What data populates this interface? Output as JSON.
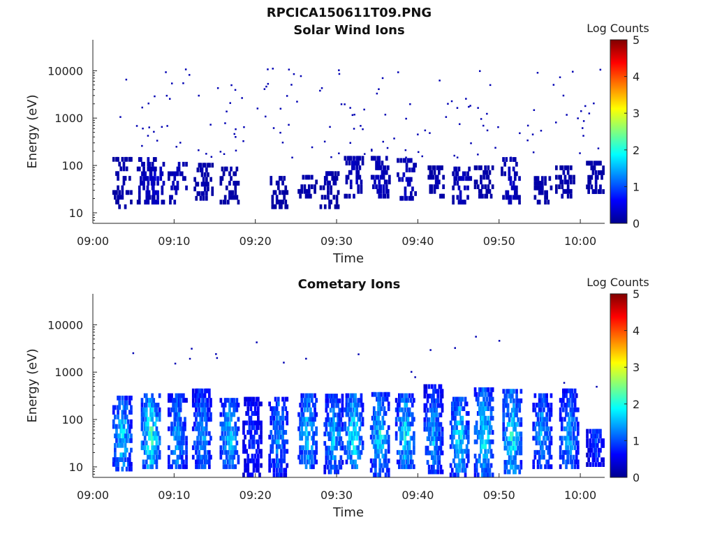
{
  "title": "RPCICA150611T09.PNG",
  "chart_data": [
    {
      "type": "heatmap",
      "title": "Solar Wind Ions",
      "xlabel": "Time",
      "ylabel": "Energy (eV)",
      "yscale": "log",
      "xlim": [
        "09:00",
        "10:03"
      ],
      "ylim": [
        6,
        45000
      ],
      "xticks": [
        "09:00",
        "09:10",
        "09:20",
        "09:30",
        "09:40",
        "09:50",
        "10:00"
      ],
      "yticks": [
        10,
        100,
        1000,
        10000
      ],
      "yticklabels": [
        "10",
        "100",
        "1000",
        "10000"
      ],
      "colorbar": {
        "label": "Log Counts",
        "range": [
          0,
          5
        ],
        "ticks": [
          "0",
          "1",
          "2",
          "3",
          "4",
          "5"
        ]
      },
      "grid": false,
      "bursts": [
        {
          "t": "09:03.5",
          "eMin": 12,
          "eMax": 150,
          "level": 0.2
        },
        {
          "t": "09:06.5",
          "eMin": 15,
          "eMax": 140,
          "level": 0.3
        },
        {
          "t": "09:07.5",
          "eMin": 15,
          "eMax": 110,
          "level": 0.4
        },
        {
          "t": "09:10.3",
          "eMin": 15,
          "eMax": 110,
          "level": 0.3
        },
        {
          "t": "09:13.5",
          "eMin": 18,
          "eMax": 100,
          "level": 0.2
        },
        {
          "t": "09:16.7",
          "eMin": 15,
          "eMax": 90,
          "level": 0.2
        },
        {
          "t": "09:22.7",
          "eMin": 12,
          "eMax": 50,
          "level": 0.2
        },
        {
          "t": "09:26.3",
          "eMin": 20,
          "eMax": 55,
          "level": 0.2
        },
        {
          "t": "09:29.0",
          "eMin": 12,
          "eMax": 70,
          "level": 0.2
        },
        {
          "t": "09:32.0",
          "eMin": 20,
          "eMax": 130,
          "level": 0.3
        },
        {
          "t": "09:35.3",
          "eMin": 20,
          "eMax": 130,
          "level": 0.3
        },
        {
          "t": "09:38.5",
          "eMin": 18,
          "eMax": 120,
          "level": 0.3
        },
        {
          "t": "09:42.3",
          "eMin": 20,
          "eMax": 80,
          "level": 0.2
        },
        {
          "t": "09:45.3",
          "eMin": 15,
          "eMax": 90,
          "level": 0.3
        },
        {
          "t": "09:48.0",
          "eMin": 20,
          "eMax": 100,
          "level": 0.2
        },
        {
          "t": "09:51.3",
          "eMin": 15,
          "eMax": 140,
          "level": 0.3
        },
        {
          "t": "09:55.2",
          "eMin": 15,
          "eMax": 50,
          "level": 0.2
        },
        {
          "t": "09:58.0",
          "eMin": 20,
          "eMax": 100,
          "level": 0.2
        },
        {
          "t": "10:01.8",
          "eMin": 25,
          "eMax": 120,
          "level": 0.2
        }
      ]
    },
    {
      "type": "heatmap",
      "title": "Cometary Ions",
      "xlabel": "Time",
      "ylabel": "Energy (eV)",
      "yscale": "log",
      "xlim": [
        "09:00",
        "10:03"
      ],
      "ylim": [
        6,
        45000
      ],
      "xticks": [
        "09:00",
        "09:10",
        "09:20",
        "09:30",
        "09:40",
        "09:50",
        "10:00"
      ],
      "yticks": [
        10,
        100,
        1000,
        10000
      ],
      "yticklabels": [
        "10",
        "100",
        "1000",
        "10000"
      ],
      "colorbar": {
        "label": "Log Counts",
        "range": [
          0,
          5
        ],
        "ticks": [
          "0",
          "1",
          "2",
          "3",
          "4",
          "5"
        ]
      },
      "grid": false,
      "bursts": [
        {
          "t": "09:03.5",
          "eMin": 8,
          "eMax": 300,
          "level": 1.8
        },
        {
          "t": "09:07.0",
          "eMin": 9,
          "eMax": 320,
          "level": 2.2
        },
        {
          "t": "09:10.3",
          "eMin": 9,
          "eMax": 300,
          "level": 1.6
        },
        {
          "t": "09:13.3",
          "eMin": 9,
          "eMax": 400,
          "level": 1.6
        },
        {
          "t": "09:16.7",
          "eMin": 9,
          "eMax": 250,
          "level": 1.8
        },
        {
          "t": "09:19.5",
          "eMin": 6,
          "eMax": 250,
          "level": 1.0
        },
        {
          "t": "09:22.7",
          "eMin": 6,
          "eMax": 250,
          "level": 1.5
        },
        {
          "t": "09:26.3",
          "eMin": 9,
          "eMax": 300,
          "level": 1.8
        },
        {
          "t": "09:29.5",
          "eMin": 7,
          "eMax": 300,
          "level": 1.7
        },
        {
          "t": "09:32.0",
          "eMin": 9,
          "eMax": 350,
          "level": 2.0
        },
        {
          "t": "09:35.2",
          "eMin": 6,
          "eMax": 350,
          "level": 1.9
        },
        {
          "t": "09:38.3",
          "eMin": 9,
          "eMax": 300,
          "level": 1.9
        },
        {
          "t": "09:41.8",
          "eMin": 7,
          "eMax": 500,
          "level": 1.6
        },
        {
          "t": "09:45.0",
          "eMin": 6,
          "eMax": 300,
          "level": 1.9
        },
        {
          "t": "09:48.0",
          "eMin": 6,
          "eMax": 450,
          "level": 2.0
        },
        {
          "t": "09:51.5",
          "eMin": 7,
          "eMax": 400,
          "level": 2.1
        },
        {
          "t": "09:55.2",
          "eMin": 9,
          "eMax": 300,
          "level": 1.6
        },
        {
          "t": "09:58.5",
          "eMin": 9,
          "eMax": 400,
          "level": 1.6
        },
        {
          "t": "10:01.8",
          "eMin": 10,
          "eMax": 60,
          "level": 1.0
        }
      ]
    }
  ]
}
